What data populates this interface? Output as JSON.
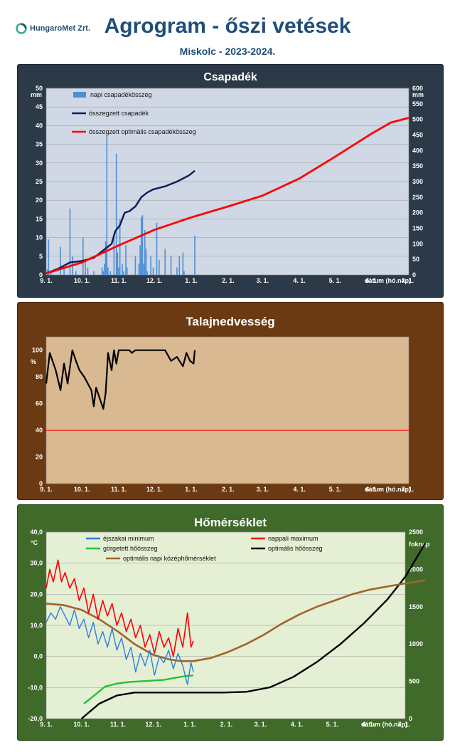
{
  "header": {
    "logo_text": "HungaroMet Zrt.",
    "title": "Agrogram - őszi vetések",
    "subtitle": "Miskolc  - 2023-2024."
  },
  "x_axis": {
    "tick_labels": [
      "9. 1.",
      "10. 1.",
      "11. 1.",
      "12. 1.",
      "1. 1.",
      "2. 1.",
      "3. 1.",
      "4. 1.",
      "5. 1.",
      "6. 1.",
      "7. 1."
    ],
    "label": "dátum (hó.nap)"
  },
  "chart_data": [
    {
      "type": "bar",
      "title": "Csapadék",
      "y_unit": "mm",
      "y2_unit": "mm",
      "ylim": [
        0,
        50
      ],
      "y2lim": [
        0,
        600
      ],
      "yticks": [
        0,
        5,
        10,
        15,
        20,
        25,
        30,
        35,
        40,
        45,
        50
      ],
      "y2ticks": [
        0,
        50,
        100,
        150,
        200,
        250,
        300,
        350,
        400,
        450,
        500,
        550,
        600
      ],
      "xlim_days": [
        0,
        305
      ],
      "grid": true,
      "legend_placement": "top-left",
      "series": [
        {
          "name": "napi csapadékösszeg",
          "type": "bar",
          "axis": "left",
          "color": "#4f8fd6",
          "points": [
            [
              1,
              1.5
            ],
            [
              2,
              9.5
            ],
            [
              4,
              1
            ],
            [
              12,
              7.5
            ],
            [
              15,
              2
            ],
            [
              20,
              17.8
            ],
            [
              22,
              5
            ],
            [
              25,
              1
            ],
            [
              31,
              10
            ],
            [
              33,
              4
            ],
            [
              35,
              2
            ],
            [
              40,
              1
            ],
            [
              47,
              2
            ],
            [
              48,
              1
            ],
            [
              49,
              3
            ],
            [
              50,
              9
            ],
            [
              51,
              37.5
            ],
            [
              52,
              2
            ],
            [
              54,
              1
            ],
            [
              57,
              10
            ],
            [
              59,
              32.5
            ],
            [
              60,
              6
            ],
            [
              61,
              2
            ],
            [
              62,
              15
            ],
            [
              64,
              3
            ],
            [
              65,
              1
            ],
            [
              67,
              8
            ],
            [
              68,
              2
            ],
            [
              75,
              5
            ],
            [
              78,
              3
            ],
            [
              79,
              8
            ],
            [
              80,
              15.5
            ],
            [
              81,
              16
            ],
            [
              82,
              3
            ],
            [
              83,
              12
            ],
            [
              84,
              7
            ],
            [
              85,
              1
            ],
            [
              88,
              5
            ],
            [
              90,
              2
            ],
            [
              93,
              14
            ],
            [
              95,
              4
            ],
            [
              100,
              7
            ],
            [
              105,
              5
            ],
            [
              110,
              2
            ],
            [
              112,
              5
            ],
            [
              115,
              6
            ],
            [
              116,
              1
            ],
            [
              125,
              10.5
            ]
          ]
        },
        {
          "name": "összegzett csapadék",
          "type": "line",
          "axis": "right",
          "color": "#0d1f5c",
          "points": [
            [
              0,
              5
            ],
            [
              10,
              20
            ],
            [
              20,
              40
            ],
            [
              30,
              45
            ],
            [
              40,
              55
            ],
            [
              50,
              85
            ],
            [
              55,
              100
            ],
            [
              58,
              140
            ],
            [
              62,
              160
            ],
            [
              66,
              200
            ],
            [
              70,
              205
            ],
            [
              75,
              220
            ],
            [
              80,
              250
            ],
            [
              85,
              265
            ],
            [
              90,
              275
            ],
            [
              100,
              285
            ],
            [
              110,
              300
            ],
            [
              120,
              320
            ],
            [
              125,
              335
            ]
          ]
        },
        {
          "name": "összegzett optimális csapadékösszeg",
          "type": "line",
          "axis": "right",
          "color": "#ff0000",
          "points": [
            [
              0,
              5
            ],
            [
              30,
              40
            ],
            [
              61,
              95
            ],
            [
              91,
              145
            ],
            [
              122,
              185
            ],
            [
              153,
              220
            ],
            [
              182,
              255
            ],
            [
              213,
              310
            ],
            [
              243,
              380
            ],
            [
              274,
              455
            ],
            [
              290,
              490
            ],
            [
              305,
              505
            ]
          ]
        }
      ]
    },
    {
      "type": "line",
      "title": "Talajnedvesség",
      "y_unit": "%",
      "ylim": [
        0,
        110
      ],
      "yticks": [
        0,
        20,
        40,
        60,
        80,
        100
      ],
      "xlim_days": [
        0,
        305
      ],
      "grid": false,
      "series": [
        {
          "name": "",
          "color": "#000000",
          "points": [
            [
              0,
              75
            ],
            [
              3,
              98
            ],
            [
              8,
              85
            ],
            [
              12,
              70
            ],
            [
              15,
              90
            ],
            [
              18,
              75
            ],
            [
              22,
              100
            ],
            [
              25,
              92
            ],
            [
              28,
              85
            ],
            [
              32,
              80
            ],
            [
              35,
              75
            ],
            [
              38,
              70
            ],
            [
              40,
              58
            ],
            [
              42,
              72
            ],
            [
              45,
              64
            ],
            [
              48,
              56
            ],
            [
              50,
              68
            ],
            [
              52,
              98
            ],
            [
              55,
              85
            ],
            [
              57,
              100
            ],
            [
              59,
              90
            ],
            [
              61,
              100
            ],
            [
              70,
              100
            ],
            [
              72,
              98
            ],
            [
              75,
              100
            ],
            [
              85,
              100
            ],
            [
              100,
              100
            ],
            [
              105,
              92
            ],
            [
              110,
              95
            ],
            [
              115,
              88
            ],
            [
              118,
              98
            ],
            [
              121,
              92
            ],
            [
              124,
              90
            ],
            [
              125,
              100
            ]
          ]
        },
        {
          "name": "",
          "color": "#ff0000",
          "points": [
            [
              0,
              40
            ],
            [
              305,
              40
            ]
          ]
        }
      ]
    },
    {
      "type": "line",
      "title": "Hőmérséklet",
      "y_unit": "°C",
      "y2_unit": "foknap",
      "ylim": [
        -20,
        40
      ],
      "y2lim": [
        0,
        2500
      ],
      "yticks": [
        -20,
        -10,
        0,
        10,
        20,
        30,
        40
      ],
      "ytick_labels": [
        "-20,0",
        "-10,0",
        "0,0",
        "10,0",
        "20,0",
        "30,0",
        "40,0"
      ],
      "y2ticks": [
        0,
        500,
        1000,
        1500,
        2000,
        2500
      ],
      "xlim_days": [
        0,
        305
      ],
      "grid": true,
      "legend_placement": "top-left",
      "series": [
        {
          "name": "éjszakai minimum",
          "axis": "left",
          "color": "#2e7fd8",
          "points": [
            [
              0,
              11
            ],
            [
              4,
              14
            ],
            [
              8,
              12
            ],
            [
              12,
              16
            ],
            [
              16,
              13
            ],
            [
              20,
              10
            ],
            [
              24,
              15
            ],
            [
              28,
              9
            ],
            [
              32,
              12
            ],
            [
              36,
              6
            ],
            [
              40,
              11
            ],
            [
              44,
              4
            ],
            [
              48,
              8
            ],
            [
              52,
              3
            ],
            [
              56,
              9
            ],
            [
              60,
              2
            ],
            [
              64,
              6
            ],
            [
              68,
              -1
            ],
            [
              72,
              3
            ],
            [
              76,
              -5
            ],
            [
              80,
              1
            ],
            [
              84,
              -3
            ],
            [
              88,
              2
            ],
            [
              92,
              -6
            ],
            [
              96,
              0
            ],
            [
              100,
              -2
            ],
            [
              104,
              2
            ],
            [
              108,
              -4
            ],
            [
              112,
              1
            ],
            [
              116,
              -3
            ],
            [
              120,
              -9
            ],
            [
              123,
              -2
            ],
            [
              125,
              -5
            ]
          ]
        },
        {
          "name": "nappali maximum",
          "axis": "left",
          "color": "#ff0000",
          "points": [
            [
              0,
              22
            ],
            [
              3,
              28
            ],
            [
              6,
              24
            ],
            [
              10,
              31
            ],
            [
              13,
              24
            ],
            [
              16,
              27
            ],
            [
              20,
              22
            ],
            [
              24,
              25
            ],
            [
              28,
              18
            ],
            [
              32,
              22
            ],
            [
              36,
              14
            ],
            [
              40,
              20
            ],
            [
              44,
              12
            ],
            [
              48,
              18
            ],
            [
              52,
              13
            ],
            [
              56,
              17
            ],
            [
              60,
              10
            ],
            [
              64,
              14
            ],
            [
              68,
              8
            ],
            [
              72,
              12
            ],
            [
              76,
              6
            ],
            [
              80,
              10
            ],
            [
              84,
              3
            ],
            [
              88,
              7
            ],
            [
              92,
              1
            ],
            [
              96,
              8
            ],
            [
              100,
              3
            ],
            [
              104,
              6
            ],
            [
              108,
              0
            ],
            [
              112,
              9
            ],
            [
              116,
              3
            ],
            [
              120,
              14
            ],
            [
              123,
              3
            ],
            [
              125,
              5
            ]
          ]
        },
        {
          "name": "görgetett hőösszeg",
          "axis": "right",
          "color": "#22c33a",
          "points": [
            [
              32,
              200
            ],
            [
              40,
              300
            ],
            [
              50,
              430
            ],
            [
              60,
              470
            ],
            [
              70,
              490
            ],
            [
              80,
              500
            ],
            [
              90,
              510
            ],
            [
              100,
              520
            ],
            [
              110,
              550
            ],
            [
              118,
              570
            ],
            [
              125,
              580
            ]
          ]
        },
        {
          "name": "optimális hőösszeg",
          "axis": "right",
          "color": "#000000",
          "points": [
            [
              30,
              0
            ],
            [
              45,
              200
            ],
            [
              60,
              310
            ],
            [
              75,
              350
            ],
            [
              100,
              350
            ],
            [
              150,
              350
            ],
            [
              170,
              360
            ],
            [
              190,
              420
            ],
            [
              210,
              560
            ],
            [
              230,
              760
            ],
            [
              250,
              1000
            ],
            [
              270,
              1280
            ],
            [
              290,
              1600
            ],
            [
              305,
              1900
            ],
            [
              322,
              2350
            ]
          ]
        },
        {
          "name": "optimális napi középhőmérséklet",
          "axis": "left",
          "color": "#a0642a",
          "points": [
            [
              0,
              17
            ],
            [
              15,
              16.5
            ],
            [
              30,
              15
            ],
            [
              45,
              12
            ],
            [
              61,
              8
            ],
            [
              75,
              4
            ],
            [
              91,
              0.5
            ],
            [
              105,
              -1
            ],
            [
              115,
              -1.5
            ],
            [
              125,
              -1.5
            ],
            [
              140,
              -0.5
            ],
            [
              155,
              1.5
            ],
            [
              170,
              4
            ],
            [
              185,
              7
            ],
            [
              200,
              10.5
            ],
            [
              215,
              13.5
            ],
            [
              230,
              16
            ],
            [
              245,
              18
            ],
            [
              260,
              20
            ],
            [
              275,
              21.5
            ],
            [
              290,
              22.5
            ],
            [
              305,
              23.5
            ],
            [
              322,
              24.5
            ]
          ]
        }
      ]
    }
  ],
  "colors": {
    "title_blue": "#1f4e79",
    "panel1_bg": "#2b3948",
    "panel2_bg": "#6b3a12",
    "panel3_bg": "#3f6a2a",
    "plot1_bg": "#cfd8e4",
    "plot2_bg": "#d9b991",
    "plot3_bg": "#e4efd4"
  }
}
